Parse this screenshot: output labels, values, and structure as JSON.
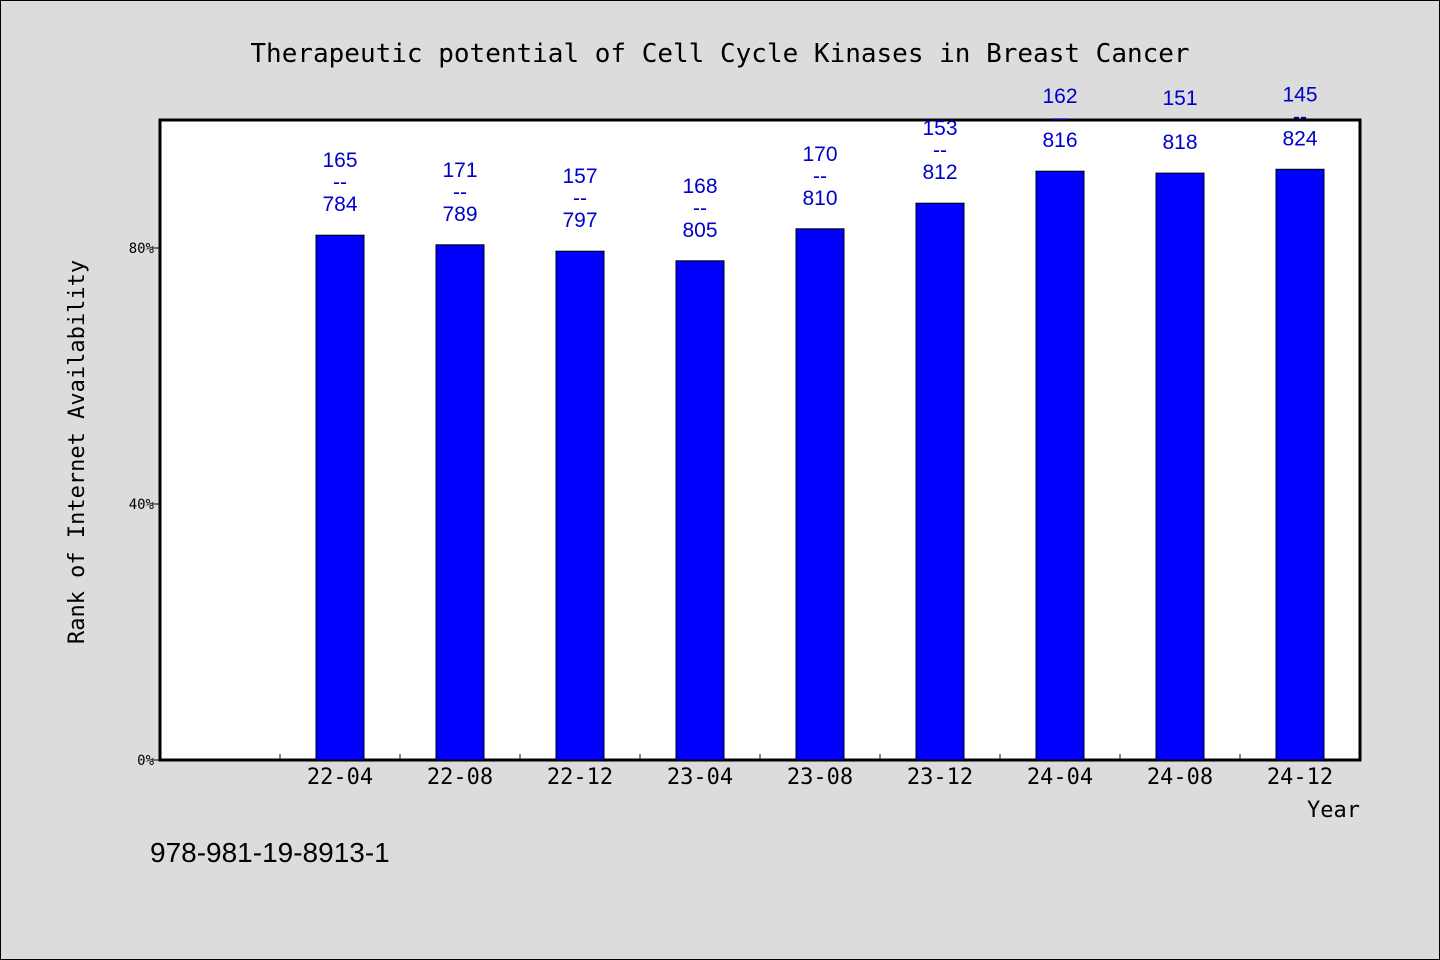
{
  "chart_data": {
    "type": "bar",
    "title": "Therapeutic potential of Cell Cycle Kinases in Breast Cancer",
    "xlabel": "Year",
    "ylabel": "Rank of Internet Availability",
    "ylim": [
      0,
      100
    ],
    "yticks": [
      {
        "value": 0,
        "label": "0%"
      },
      {
        "value": 40,
        "label": "40%"
      },
      {
        "value": 80,
        "label": "80%"
      }
    ],
    "categories": [
      "22-04",
      "22-08",
      "22-12",
      "23-04",
      "23-08",
      "23-12",
      "24-04",
      "24-08",
      "24-12"
    ],
    "values": [
      82,
      80.5,
      79.5,
      78,
      83,
      87,
      92,
      91.7,
      92.3
    ],
    "data_labels": [
      {
        "top": "165",
        "sep": "--",
        "bottom": "784"
      },
      {
        "top": "171",
        "sep": "--",
        "bottom": "789"
      },
      {
        "top": "157",
        "sep": "--",
        "bottom": "797"
      },
      {
        "top": "168",
        "sep": "--",
        "bottom": "805"
      },
      {
        "top": "170",
        "sep": "--",
        "bottom": "810"
      },
      {
        "top": "153",
        "sep": "--",
        "bottom": "812"
      },
      {
        "top": "162",
        "sep": "--",
        "bottom": "816"
      },
      {
        "top": "151",
        "sep": "",
        "bottom": "818"
      },
      {
        "top": "145",
        "sep": "--",
        "bottom": "824"
      }
    ],
    "bar_color": "#0000ff",
    "label_color": "#0000cc",
    "grid": false
  },
  "footer": {
    "isbn": "978-981-19-8913-1"
  }
}
